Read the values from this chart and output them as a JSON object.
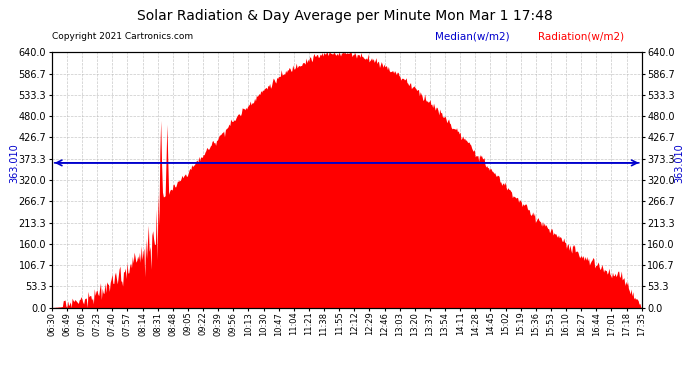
{
  "title": "Solar Radiation & Day Average per Minute Mon Mar 1 17:48",
  "copyright": "Copyright 2021 Cartronics.com",
  "median_label": "Median(w/m2)",
  "radiation_label": "Radiation(w/m2)",
  "median_value": 363.01,
  "median_text": "363.010",
  "ylim": [
    0,
    640
  ],
  "yticks": [
    0.0,
    53.3,
    106.7,
    160.0,
    213.3,
    266.7,
    320.0,
    373.3,
    426.7,
    480.0,
    533.3,
    586.7,
    640.0
  ],
  "background_color": "#ffffff",
  "fill_color": "#ff0000",
  "line_color": "#0000cd",
  "grid_color": "#bbbbbb",
  "title_color": "#000000",
  "copyright_color": "#000000",
  "median_label_color": "#0000cd",
  "radiation_label_color": "#ff0000",
  "xtick_labels": [
    "06:30",
    "06:49",
    "07:06",
    "07:23",
    "07:40",
    "07:57",
    "08:14",
    "08:31",
    "08:48",
    "09:05",
    "09:22",
    "09:39",
    "09:56",
    "10:13",
    "10:30",
    "10:47",
    "11:04",
    "11:21",
    "11:38",
    "11:55",
    "12:12",
    "12:29",
    "12:46",
    "13:03",
    "13:20",
    "13:37",
    "13:54",
    "14:11",
    "14:28",
    "14:45",
    "15:02",
    "15:19",
    "15:36",
    "15:53",
    "16:10",
    "16:27",
    "16:44",
    "17:01",
    "17:18",
    "17:35"
  ],
  "n_points": 667
}
